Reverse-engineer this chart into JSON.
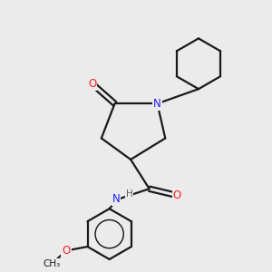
{
  "bg_color": "#ebebeb",
  "bond_color": "#1a1a1a",
  "bond_width": 1.6,
  "atom_colors": {
    "N": "#2020ff",
    "O": "#ff2020",
    "C": "#1a1a1a",
    "H": "#606060"
  },
  "font_size_atoms": 8.5,
  "font_size_small": 7.5
}
